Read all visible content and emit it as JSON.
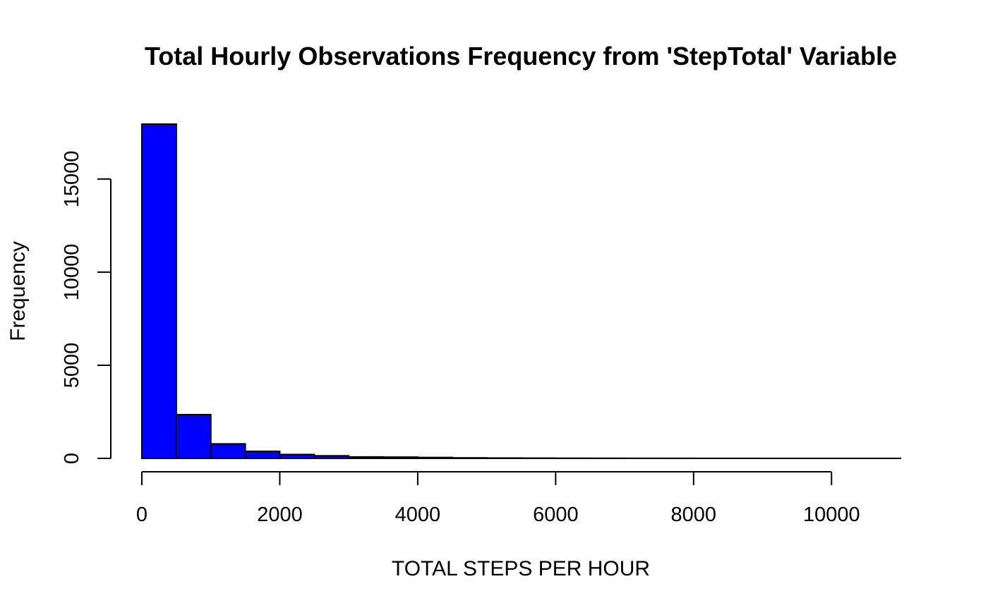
{
  "chart_data": {
    "type": "bar",
    "subtype": "histogram",
    "title": "Total Hourly Observations Frequency from 'StepTotal' Variable",
    "xlabel": "TOTAL STEPS PER HOUR",
    "ylabel": "Frequency",
    "bar_color": "#0000FF",
    "edge_color": "#000000",
    "bin_width": 500,
    "bins": [
      {
        "x0": 0,
        "x1": 500,
        "count": 17950
      },
      {
        "x0": 500,
        "x1": 1000,
        "count": 2350
      },
      {
        "x0": 1000,
        "x1": 1500,
        "count": 780
      },
      {
        "x0": 1500,
        "x1": 2000,
        "count": 380
      },
      {
        "x0": 2000,
        "x1": 2500,
        "count": 210
      },
      {
        "x0": 2500,
        "x1": 3000,
        "count": 140
      },
      {
        "x0": 3000,
        "x1": 3500,
        "count": 80
      },
      {
        "x0": 3500,
        "x1": 4000,
        "count": 70
      },
      {
        "x0": 4000,
        "x1": 4500,
        "count": 50
      },
      {
        "x0": 4500,
        "x1": 5000,
        "count": 30
      },
      {
        "x0": 5000,
        "x1": 5500,
        "count": 20
      },
      {
        "x0": 5500,
        "x1": 6000,
        "count": 15
      },
      {
        "x0": 6000,
        "x1": 6500,
        "count": 10
      },
      {
        "x0": 6500,
        "x1": 7000,
        "count": 8
      },
      {
        "x0": 7000,
        "x1": 7500,
        "count": 6
      },
      {
        "x0": 7500,
        "x1": 8000,
        "count": 5
      },
      {
        "x0": 8000,
        "x1": 8500,
        "count": 4
      },
      {
        "x0": 8500,
        "x1": 9000,
        "count": 3
      },
      {
        "x0": 9000,
        "x1": 9500,
        "count": 2
      },
      {
        "x0": 9500,
        "x1": 10000,
        "count": 2
      },
      {
        "x0": 10000,
        "x1": 10500,
        "count": 1
      },
      {
        "x0": 10500,
        "x1": 11000,
        "count": 1
      }
    ],
    "x_ticks": [
      0,
      2000,
      4000,
      6000,
      8000,
      10000
    ],
    "x_tick_labels": [
      "0",
      "2000",
      "4000",
      "6000",
      "8000",
      "10000"
    ],
    "y_ticks": [
      0,
      5000,
      10000,
      15000
    ],
    "y_tick_labels": [
      "0",
      "5000",
      "10000",
      "15000"
    ],
    "xlim": [
      0,
      11000
    ],
    "ylim": [
      0,
      17950
    ],
    "grid": false,
    "legend": "none"
  }
}
